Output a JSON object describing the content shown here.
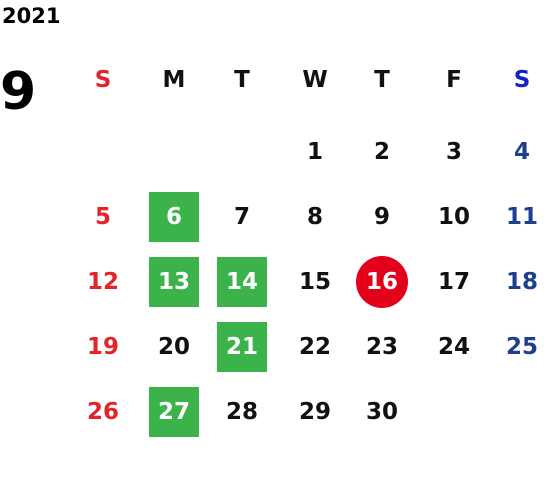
{
  "year": "2021",
  "month": "9",
  "weekdays": [
    "S",
    "M",
    "T",
    "W",
    "T",
    "F",
    "S"
  ],
  "weeks": [
    [
      null,
      null,
      null,
      {
        "day": 1
      },
      {
        "day": 2
      },
      {
        "day": 3
      },
      {
        "day": 4
      }
    ],
    [
      {
        "day": 5
      },
      {
        "day": 6,
        "highlight": "box"
      },
      {
        "day": 7
      },
      {
        "day": 8
      },
      {
        "day": 9
      },
      {
        "day": 10
      },
      {
        "day": 11
      }
    ],
    [
      {
        "day": 12
      },
      {
        "day": 13,
        "highlight": "box"
      },
      {
        "day": 14,
        "highlight": "box"
      },
      {
        "day": 15
      },
      {
        "day": 16,
        "highlight": "circle"
      },
      {
        "day": 17
      },
      {
        "day": 18
      }
    ],
    [
      {
        "day": 19
      },
      {
        "day": 20
      },
      {
        "day": 21,
        "highlight": "box"
      },
      {
        "day": 22
      },
      {
        "day": 23
      },
      {
        "day": 24
      },
      {
        "day": 25
      }
    ],
    [
      {
        "day": 26
      },
      {
        "day": 27,
        "highlight": "box"
      },
      {
        "day": 28
      },
      {
        "day": 29
      },
      {
        "day": 30
      },
      null,
      null
    ]
  ],
  "colors": {
    "text": "#111111",
    "sunday": "#e3242b",
    "saturday": "#1e3f8f",
    "saturday_header": "#1122cc",
    "box": "#3bb34a",
    "circle": "#e3001b",
    "highlight_text": "#ffffff"
  }
}
